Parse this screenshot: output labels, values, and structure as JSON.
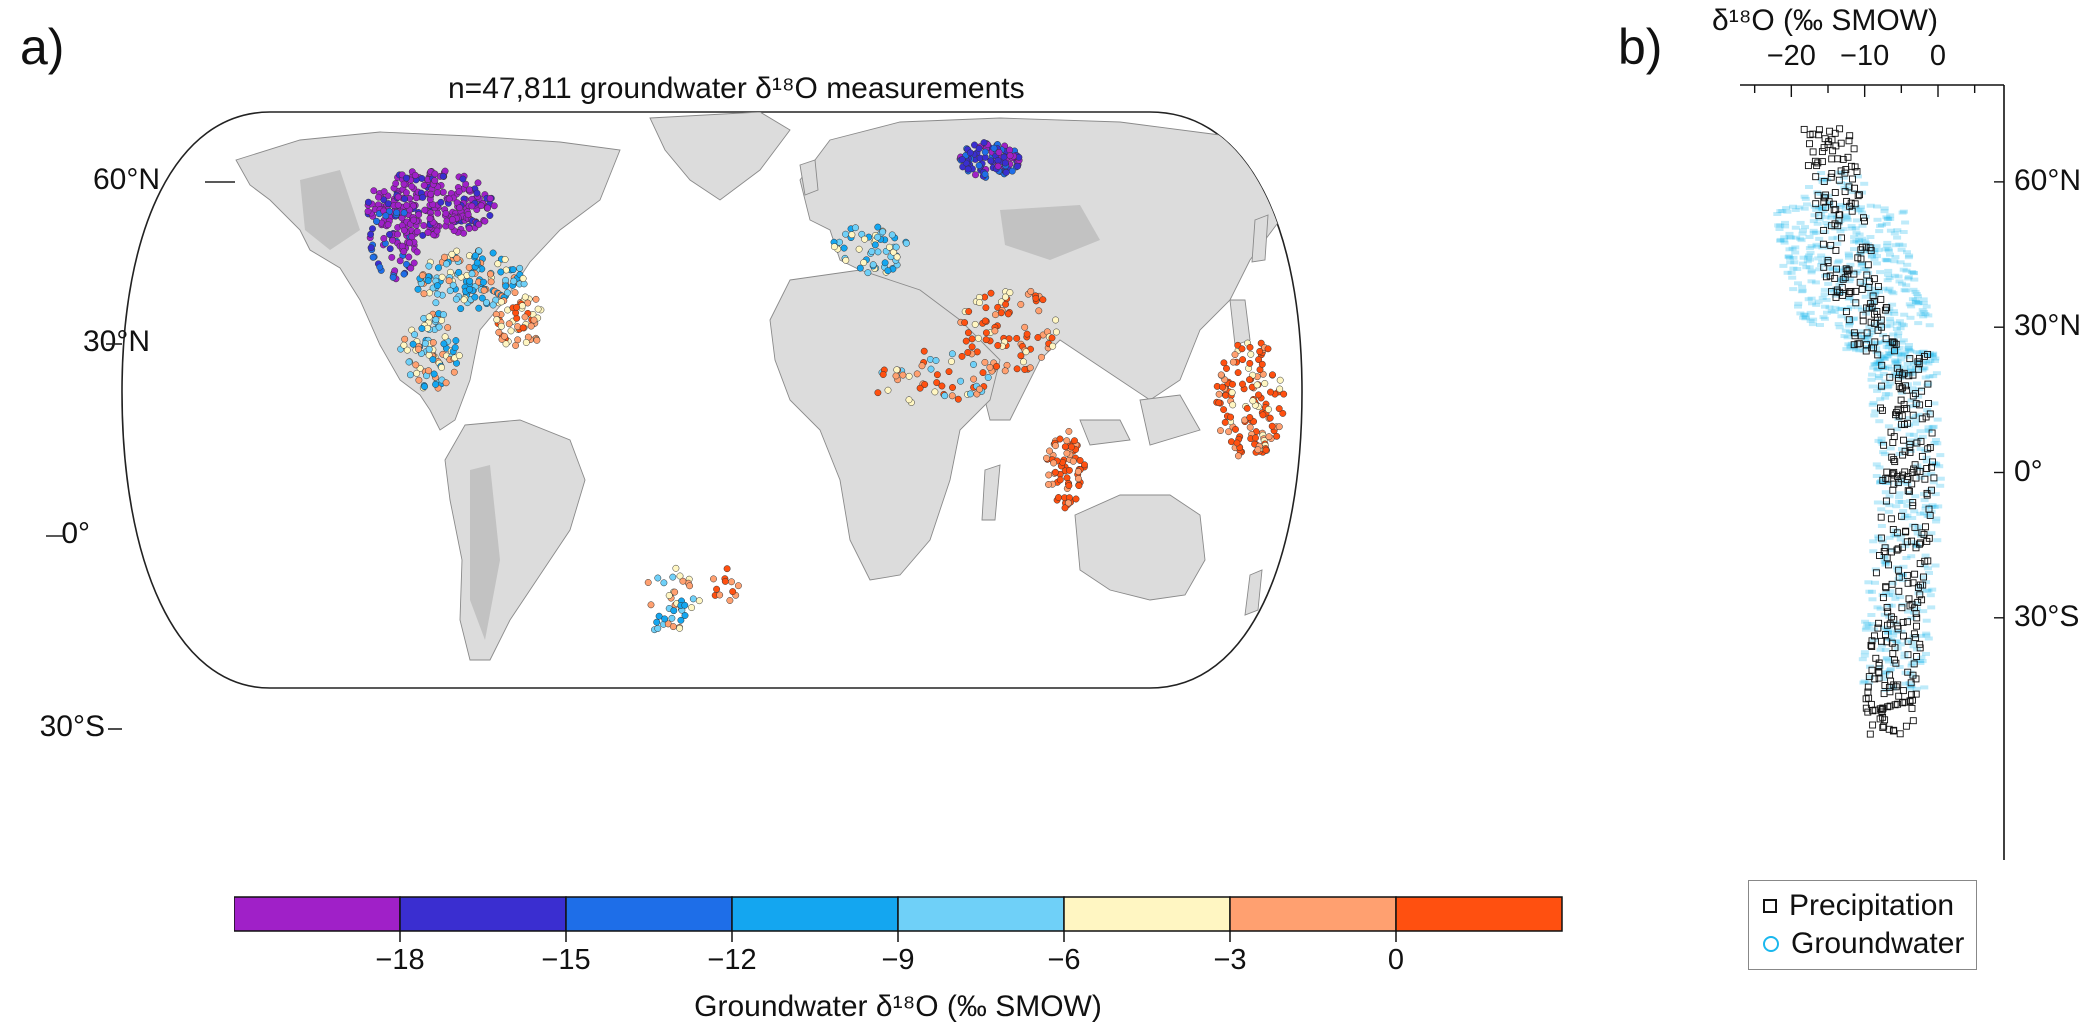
{
  "panel_a": {
    "label": "a)",
    "title": "n=47,811 groundwater δ¹⁸O measurements",
    "lat_labels": [
      "60°N",
      "30°N",
      "0°",
      "30°S"
    ],
    "colorbar": {
      "title": "Groundwater δ¹⁸O (‰ SMOW)",
      "ticks": [
        "−18",
        "−15",
        "−12",
        "−9",
        "−6",
        "−3",
        "0"
      ],
      "tick_values": [
        -18,
        -15,
        -12,
        -9,
        -6,
        -3,
        0
      ],
      "colors": [
        "#a020c8",
        "#3a2ed0",
        "#1e6ee8",
        "#14a6f0",
        "#6fd0f8",
        "#fff6c2",
        "#ffa070",
        "#ff5010"
      ]
    }
  },
  "panel_b": {
    "label": "b)",
    "x_axis_title": "δ¹⁸O (‰ SMOW)",
    "x_ticks": [
      "−20",
      "−10",
      "0"
    ],
    "x_tick_values": [
      -20,
      -10,
      0
    ],
    "xlim": [
      -27,
      9
    ],
    "lat_labels": [
      "60°N",
      "30°N",
      "0°",
      "30°S"
    ],
    "lat_values": [
      60,
      30,
      0,
      -30
    ],
    "legend": [
      "Precipitation",
      "Groundwater"
    ],
    "colors": {
      "precipitation": "#111111",
      "groundwater": "#1ab8ee"
    }
  }
}
